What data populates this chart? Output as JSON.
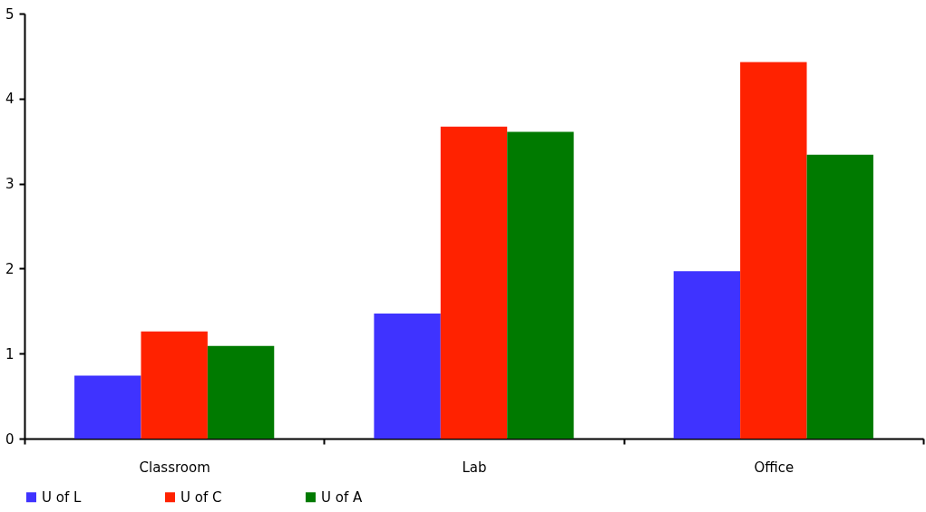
{
  "chart_data": {
    "type": "bar",
    "categories": [
      "Classroom",
      "Lab",
      "Office"
    ],
    "series": [
      {
        "name": "U of L",
        "color": "#3f33ff",
        "values": [
          0.74,
          1.47,
          1.97
        ]
      },
      {
        "name": "U of C",
        "color": "#ff2200",
        "values": [
          1.26,
          3.67,
          4.43
        ]
      },
      {
        "name": "U of A",
        "color": "#007a00",
        "values": [
          1.09,
          3.61,
          3.34
        ]
      }
    ],
    "ylim": [
      0,
      5
    ],
    "yticks": [
      0,
      1,
      2,
      3,
      4,
      5
    ],
    "grid": false,
    "legend": "bottom"
  }
}
